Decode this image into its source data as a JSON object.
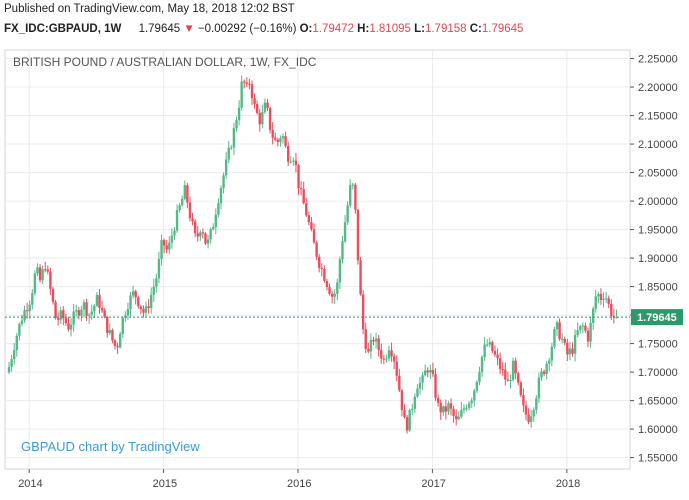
{
  "header": {
    "published": "Published on TradingView.com, May 18, 2018 12:02 BST",
    "symbol": "FX_IDC:GBPAUD, 1W",
    "last": "1.79645",
    "change_arrow": "▼",
    "change": "−0.00292 (−0.16%)",
    "o_label": "O:",
    "o_val": "1.79472",
    "h_label": "H:",
    "h_val": "1.81095",
    "l_label": "L:",
    "l_val": "1.79158",
    "c_label": "C:",
    "c_val": "1.79645"
  },
  "chart": {
    "title": "BRITISH POUND / AUSTRALIAN DOLLAR, 1W, FX_IDC",
    "watermark": "GBPAUD chart by TradingView",
    "price_label": "1.79645",
    "colors": {
      "up": "#53b987",
      "down": "#eb4d5c",
      "grid": "#e9ecef",
      "accent": "#2a9a6b",
      "watermark": "#3d9bd6"
    }
  },
  "chart_data": {
    "type": "candlestick",
    "title": "BRITISH POUND / AUSTRALIAN DOLLAR, 1W, FX_IDC",
    "ylim": [
      1.53,
      2.265
    ],
    "y_ticks": [
      "2.25000",
      "2.20000",
      "2.15000",
      "2.10000",
      "2.05000",
      "2.00000",
      "1.95000",
      "1.90000",
      "1.85000",
      "1.80000",
      "1.75000",
      "1.70000",
      "1.65000",
      "1.60000",
      "1.55000"
    ],
    "x_ticks": [
      "2014",
      "2015",
      "2016",
      "2017",
      "2018"
    ],
    "last_price": 1.79645,
    "path": [
      [
        2013.86,
        1.7
      ],
      [
        2013.92,
        1.76
      ],
      [
        2013.97,
        1.8
      ],
      [
        2014.03,
        1.83
      ],
      [
        2014.07,
        1.88
      ],
      [
        2014.1,
        1.86
      ],
      [
        2014.14,
        1.89
      ],
      [
        2014.18,
        1.84
      ],
      [
        2014.22,
        1.79
      ],
      [
        2014.26,
        1.8
      ],
      [
        2014.31,
        1.78
      ],
      [
        2014.36,
        1.8
      ],
      [
        2014.42,
        1.82
      ],
      [
        2014.47,
        1.8
      ],
      [
        2014.53,
        1.83
      ],
      [
        2014.58,
        1.79
      ],
      [
        2014.63,
        1.76
      ],
      [
        2014.67,
        1.74
      ],
      [
        2014.7,
        1.78
      ],
      [
        2014.75,
        1.82
      ],
      [
        2014.8,
        1.84
      ],
      [
        2014.84,
        1.82
      ],
      [
        2014.88,
        1.8
      ],
      [
        2014.92,
        1.83
      ],
      [
        2014.97,
        1.87
      ],
      [
        2015.01,
        1.93
      ],
      [
        2015.05,
        1.91
      ],
      [
        2015.09,
        1.95
      ],
      [
        2015.14,
        1.99
      ],
      [
        2015.18,
        2.02
      ],
      [
        2015.22,
        1.97
      ],
      [
        2015.26,
        1.93
      ],
      [
        2015.3,
        1.96
      ],
      [
        2015.34,
        1.92
      ],
      [
        2015.38,
        1.95
      ],
      [
        2015.42,
        2.0
      ],
      [
        2015.46,
        2.04
      ],
      [
        2015.5,
        2.08
      ],
      [
        2015.54,
        2.12
      ],
      [
        2015.58,
        2.17
      ],
      [
        2015.61,
        2.22
      ],
      [
        2015.63,
        2.19
      ],
      [
        2015.66,
        2.21
      ],
      [
        2015.7,
        2.16
      ],
      [
        2015.74,
        2.14
      ],
      [
        2015.78,
        2.17
      ],
      [
        2015.82,
        2.12
      ],
      [
        2015.86,
        2.1
      ],
      [
        2015.9,
        2.12
      ],
      [
        2015.94,
        2.08
      ],
      [
        2015.99,
        2.08
      ],
      [
        2016.03,
        2.02
      ],
      [
        2016.08,
        1.98
      ],
      [
        2016.13,
        1.93
      ],
      [
        2016.18,
        1.89
      ],
      [
        2016.23,
        1.86
      ],
      [
        2016.28,
        1.83
      ],
      [
        2016.31,
        1.85
      ],
      [
        2016.34,
        1.92
      ],
      [
        2016.38,
        1.98
      ],
      [
        2016.42,
        2.04
      ],
      [
        2016.45,
        1.97
      ],
      [
        2016.47,
        1.88
      ],
      [
        2016.5,
        1.78
      ],
      [
        2016.54,
        1.73
      ],
      [
        2016.58,
        1.76
      ],
      [
        2016.62,
        1.74
      ],
      [
        2016.66,
        1.72
      ],
      [
        2016.7,
        1.75
      ],
      [
        2016.74,
        1.72
      ],
      [
        2016.78,
        1.66
      ],
      [
        2016.82,
        1.6
      ],
      [
        2016.86,
        1.63
      ],
      [
        2016.9,
        1.68
      ],
      [
        2016.94,
        1.68
      ],
      [
        2016.98,
        1.71
      ],
      [
        2017.02,
        1.69
      ],
      [
        2017.06,
        1.64
      ],
      [
        2017.1,
        1.63
      ],
      [
        2017.14,
        1.64
      ],
      [
        2017.2,
        1.61
      ],
      [
        2017.26,
        1.64
      ],
      [
        2017.32,
        1.66
      ],
      [
        2017.38,
        1.72
      ],
      [
        2017.42,
        1.75
      ],
      [
        2017.46,
        1.74
      ],
      [
        2017.5,
        1.72
      ],
      [
        2017.54,
        1.7
      ],
      [
        2017.58,
        1.68
      ],
      [
        2017.62,
        1.71
      ],
      [
        2017.66,
        1.67
      ],
      [
        2017.7,
        1.63
      ],
      [
        2017.74,
        1.62
      ],
      [
        2017.78,
        1.65
      ],
      [
        2017.82,
        1.69
      ],
      [
        2017.86,
        1.71
      ],
      [
        2017.9,
        1.74
      ],
      [
        2017.94,
        1.78
      ],
      [
        2017.98,
        1.76
      ],
      [
        2018.02,
        1.73
      ],
      [
        2018.06,
        1.74
      ],
      [
        2018.1,
        1.77
      ],
      [
        2018.14,
        1.78
      ],
      [
        2018.18,
        1.76
      ],
      [
        2018.21,
        1.8
      ],
      [
        2018.24,
        1.84
      ],
      [
        2018.27,
        1.83
      ],
      [
        2018.3,
        1.84
      ],
      [
        2018.34,
        1.81
      ],
      [
        2018.37,
        1.79645
      ]
    ]
  }
}
